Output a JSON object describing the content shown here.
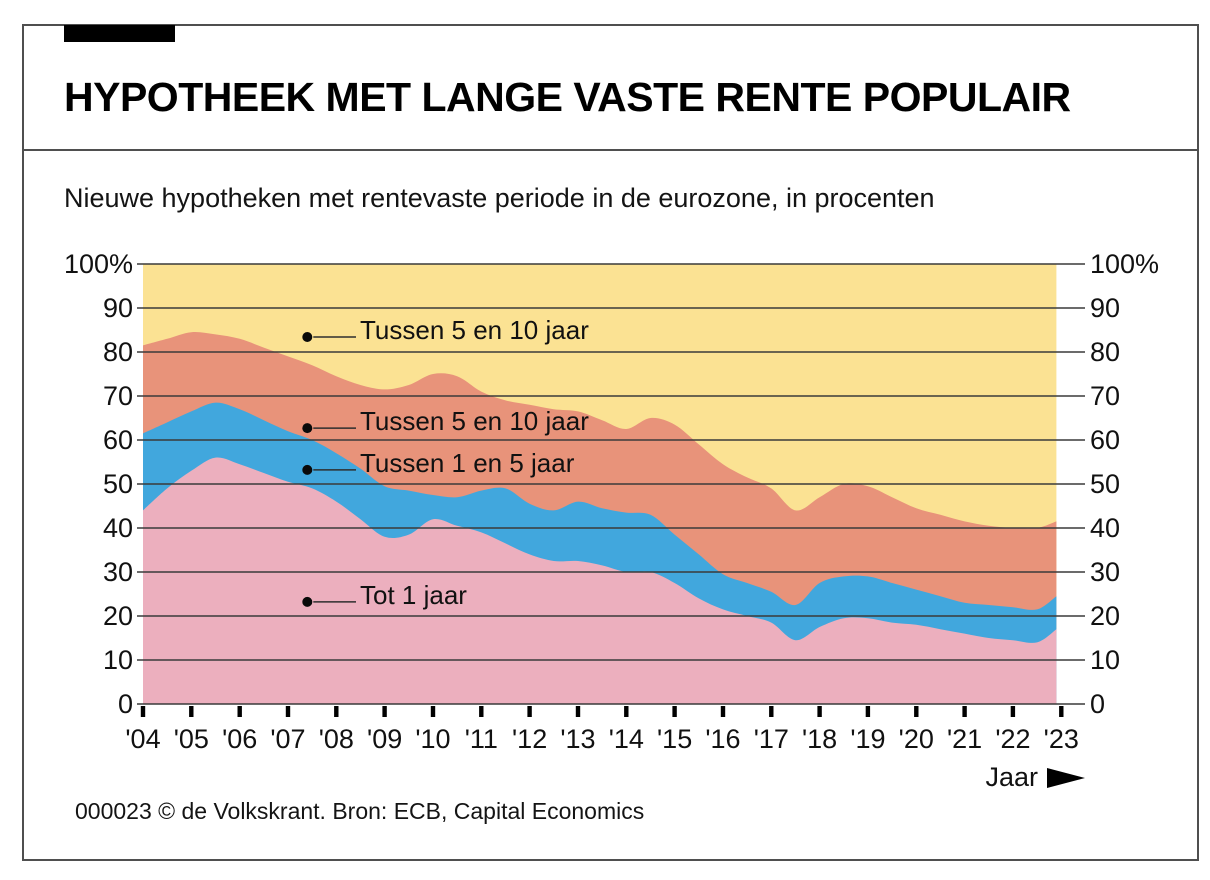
{
  "header": {
    "title": "HYPOTHEEK MET LANGE VASTE RENTE POPULAIR"
  },
  "chart_data": {
    "type": "area",
    "stacked": true,
    "subtitle": "Nieuwe hypotheken met rentevaste periode in de eurozone, in procenten",
    "unit": "procent",
    "ylim": [
      0,
      100
    ],
    "grid": true,
    "legend": "inline-annotations",
    "xlabel": "Jaar",
    "y_ticks": [
      "100%",
      "90",
      "80",
      "70",
      "60",
      "50",
      "40",
      "30",
      "20",
      "10",
      "0"
    ],
    "y_tick_values": [
      100,
      90,
      80,
      70,
      60,
      50,
      40,
      30,
      20,
      10,
      0
    ],
    "x_tick_labels": [
      "'04",
      "'05",
      "'06",
      "'07",
      "'08",
      "'09",
      "'10",
      "'11",
      "'12",
      "'13",
      "'14",
      "'15",
      "'16",
      "'17",
      "'18",
      "'19",
      "'20",
      "'21",
      "'22",
      "'23"
    ],
    "x_tick_years": [
      2004,
      2005,
      2006,
      2007,
      2008,
      2009,
      2010,
      2011,
      2012,
      2013,
      2014,
      2015,
      2016,
      2017,
      2018,
      2019,
      2020,
      2021,
      2022,
      2023
    ],
    "x": [
      2004,
      2004.5,
      2005,
      2005.5,
      2006,
      2006.5,
      2007,
      2007.5,
      2008,
      2008.5,
      2009,
      2009.5,
      2010,
      2010.5,
      2011,
      2011.5,
      2012,
      2012.5,
      2013,
      2013.5,
      2014,
      2014.5,
      2015,
      2015.5,
      2016,
      2016.5,
      2017,
      2017.5,
      2018,
      2018.5,
      2019,
      2019.5,
      2020,
      2020.5,
      2021,
      2021.5,
      2022,
      2022.5,
      2022.9
    ],
    "series": [
      {
        "name": "Tot 1 jaar",
        "color": "#ECAFBE",
        "values": [
          44,
          49,
          53,
          56,
          54.5,
          52.5,
          50.5,
          49,
          46,
          42,
          38,
          38.5,
          42,
          40.5,
          39,
          36.5,
          34,
          32.5,
          32.5,
          31.5,
          30,
          30,
          27.5,
          24,
          21.5,
          20,
          18.5,
          14.5,
          17.5,
          19.5,
          19.5,
          18.5,
          18,
          17,
          16,
          15,
          14.5,
          14,
          17
        ]
      },
      {
        "name": "Tussen 1 en 5 jaar",
        "color": "#41A7DD",
        "values": [
          17.5,
          15,
          13.5,
          12.5,
          12.5,
          12,
          11.5,
          11,
          11,
          11.5,
          11.5,
          10,
          5.5,
          6.5,
          9.5,
          12.5,
          11.5,
          11.5,
          13.5,
          13,
          13.5,
          13,
          11,
          10,
          8,
          7.5,
          7,
          8,
          10,
          9.5,
          9.5,
          9,
          8,
          7.5,
          7,
          7.5,
          7.5,
          7.5,
          7.5
        ]
      },
      {
        "name": "Tussen 5 en 10 jaar",
        "color": "#E8937A",
        "values": [
          20,
          19,
          18,
          15.5,
          16,
          16.5,
          17,
          17,
          17.5,
          19,
          22,
          24,
          27.5,
          27.5,
          22.5,
          20,
          22.5,
          23,
          20.5,
          20,
          19,
          22,
          25,
          25,
          25,
          24,
          23.5,
          21.5,
          19.5,
          21,
          20.5,
          19.5,
          18.5,
          18.5,
          18.5,
          18,
          18,
          18.5,
          17
        ]
      },
      {
        "name": "Tussen 5 en 10 jaar",
        "color": "#FBE293",
        "values": [
          18.5,
          17,
          15.5,
          16,
          17,
          19,
          21,
          23,
          25.5,
          27.5,
          28.5,
          27.5,
          25,
          25.5,
          29,
          31,
          32,
          33,
          33.5,
          35.5,
          37.5,
          35,
          36.5,
          41,
          45.5,
          48.5,
          51,
          56,
          53,
          50,
          50.5,
          53,
          56,
          57,
          58.5,
          59.5,
          60,
          60,
          58.5
        ]
      }
    ],
    "annotations": [
      {
        "label": "Tussen 5 en 10 jaar",
        "x": 2007.4,
        "y": 83.4
      },
      {
        "label": "Tussen 5 en 10 jaar",
        "x": 2007.4,
        "y": 62.7
      },
      {
        "label": "Tussen 1 en 5 jaar",
        "x": 2007.4,
        "y": 53.2
      },
      {
        "label": "Tot 1 jaar",
        "x": 2007.4,
        "y": 23.2
      }
    ]
  },
  "footer": {
    "credit": "000023 © de Volkskrant. Bron: ECB, Capital Economics"
  }
}
